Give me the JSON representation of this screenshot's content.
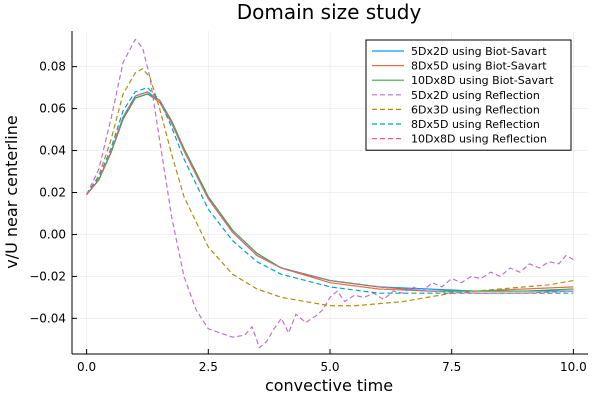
{
  "chart_data": {
    "type": "line",
    "title": "Domain size study",
    "xlabel": "convective time",
    "ylabel": "v/U near centerline",
    "xlim": [
      -0.3,
      10.3
    ],
    "ylim": [
      -0.057,
      0.097
    ],
    "x_ticks": [
      0.0,
      2.5,
      5.0,
      7.5,
      10.0
    ],
    "x_tick_labels": [
      "0.0",
      "2.5",
      "5.0",
      "7.5",
      "10.0"
    ],
    "y_ticks": [
      -0.04,
      -0.02,
      0.0,
      0.02,
      0.04,
      0.06,
      0.08
    ],
    "y_tick_labels": [
      "−0.04",
      "−0.02",
      "0.00",
      "0.02",
      "0.04",
      "0.06",
      "0.08"
    ],
    "grid": true,
    "legend_position": "top-right",
    "series": [
      {
        "name": "5Dx2D using Biot-Savart",
        "color": "#009af9",
        "dash": "solid",
        "x": [
          0.0,
          0.25,
          0.5,
          0.75,
          1.0,
          1.25,
          1.5,
          1.75,
          2.0,
          2.5,
          3.0,
          3.5,
          4.0,
          5.0,
          6.0,
          7.0,
          8.0,
          9.0,
          10.0
        ],
        "y": [
          0.019,
          0.026,
          0.039,
          0.056,
          0.066,
          0.068,
          0.064,
          0.053,
          0.04,
          0.017,
          0.001,
          -0.01,
          -0.016,
          -0.022,
          -0.025,
          -0.026,
          -0.027,
          -0.027,
          -0.027
        ]
      },
      {
        "name": "8Dx5D using Biot-Savart",
        "color": "#e26f46",
        "dash": "solid",
        "x": [
          0.0,
          0.25,
          0.5,
          0.75,
          1.0,
          1.25,
          1.5,
          1.75,
          2.0,
          2.5,
          3.0,
          3.5,
          4.0,
          5.0,
          6.0,
          7.0,
          8.0,
          9.0,
          10.0
        ],
        "y": [
          0.019,
          0.026,
          0.039,
          0.055,
          0.065,
          0.067,
          0.063,
          0.053,
          0.04,
          0.017,
          0.001,
          -0.01,
          -0.016,
          -0.023,
          -0.026,
          -0.027,
          -0.027,
          -0.026,
          -0.025
        ]
      },
      {
        "name": "10Dx8D using Biot-Savart",
        "color": "#3da44d",
        "dash": "solid",
        "x": [
          0.0,
          0.25,
          0.5,
          0.75,
          1.0,
          1.25,
          1.5,
          1.75,
          2.0,
          2.5,
          3.0,
          3.5,
          4.0,
          5.0,
          6.0,
          7.0,
          8.0,
          9.0,
          10.0
        ],
        "y": [
          0.019,
          0.026,
          0.039,
          0.055,
          0.065,
          0.067,
          0.064,
          0.054,
          0.041,
          0.018,
          0.002,
          -0.009,
          -0.016,
          -0.022,
          -0.025,
          -0.027,
          -0.027,
          -0.027,
          -0.026
        ]
      },
      {
        "name": "5Dx2D using Reflection",
        "color": "#c271d2",
        "dash": "dashed",
        "x": [
          0.0,
          0.25,
          0.5,
          0.75,
          1.0,
          1.15,
          1.3,
          1.5,
          1.75,
          2.0,
          2.25,
          2.5,
          2.75,
          3.0,
          3.25,
          3.4,
          3.55,
          3.7,
          3.85,
          4.0,
          4.15,
          4.3,
          4.5,
          4.7,
          4.85,
          5.0,
          5.15,
          5.3,
          5.5,
          5.7,
          5.9,
          6.1,
          6.3,
          6.5,
          6.7,
          6.9,
          7.1,
          7.3,
          7.5,
          7.7,
          7.9,
          8.1,
          8.3,
          8.5,
          8.7,
          8.9,
          9.1,
          9.3,
          9.5,
          9.7,
          9.85,
          10.0
        ],
        "y": [
          0.019,
          0.031,
          0.055,
          0.082,
          0.093,
          0.089,
          0.075,
          0.045,
          0.008,
          -0.02,
          -0.036,
          -0.045,
          -0.047,
          -0.049,
          -0.048,
          -0.044,
          -0.054,
          -0.051,
          -0.045,
          -0.04,
          -0.047,
          -0.038,
          -0.042,
          -0.039,
          -0.036,
          -0.03,
          -0.027,
          -0.032,
          -0.029,
          -0.03,
          -0.028,
          -0.031,
          -0.027,
          -0.028,
          -0.025,
          -0.027,
          -0.023,
          -0.025,
          -0.021,
          -0.023,
          -0.02,
          -0.021,
          -0.018,
          -0.02,
          -0.016,
          -0.018,
          -0.014,
          -0.016,
          -0.013,
          -0.014,
          -0.01,
          -0.012
        ]
      },
      {
        "name": "6Dx3D using Reflection",
        "color": "#ac8e18",
        "dash": "dashed",
        "x": [
          0.0,
          0.25,
          0.5,
          0.75,
          1.0,
          1.15,
          1.3,
          1.5,
          1.75,
          2.0,
          2.5,
          3.0,
          3.5,
          4.0,
          4.5,
          5.0,
          5.5,
          6.0,
          6.5,
          7.0,
          7.5,
          8.0,
          8.5,
          9.0,
          9.5,
          10.0
        ],
        "y": [
          0.019,
          0.028,
          0.045,
          0.067,
          0.077,
          0.079,
          0.075,
          0.06,
          0.038,
          0.018,
          -0.006,
          -0.019,
          -0.026,
          -0.03,
          -0.032,
          -0.034,
          -0.034,
          -0.033,
          -0.032,
          -0.03,
          -0.028,
          -0.027,
          -0.026,
          -0.025,
          -0.024,
          -0.022
        ]
      },
      {
        "name": "8Dx5D using Reflection",
        "color": "#00a9ad",
        "dash": "dashed",
        "x": [
          0.0,
          0.25,
          0.5,
          0.75,
          1.0,
          1.25,
          1.5,
          1.75,
          2.0,
          2.5,
          3.0,
          3.5,
          4.0,
          5.0,
          6.0,
          7.0,
          8.0,
          9.0,
          10.0
        ],
        "y": [
          0.019,
          0.027,
          0.041,
          0.059,
          0.068,
          0.07,
          0.064,
          0.051,
          0.036,
          0.012,
          -0.003,
          -0.013,
          -0.019,
          -0.025,
          -0.028,
          -0.028,
          -0.028,
          -0.028,
          -0.028
        ]
      },
      {
        "name": "10Dx8D using Reflection",
        "color": "#ed5d92",
        "dash": "dashed",
        "x": [
          0.0,
          0.25,
          0.5,
          0.75,
          1.0,
          1.25,
          1.5,
          1.75,
          2.0,
          2.5,
          3.0,
          3.5,
          4.0,
          5.0,
          6.0,
          7.0,
          8.0,
          9.0,
          10.0
        ],
        "y": [
          0.019,
          0.026,
          0.04,
          0.056,
          0.066,
          0.068,
          0.064,
          0.053,
          0.04,
          0.017,
          0.001,
          -0.01,
          -0.016,
          -0.022,
          -0.025,
          -0.027,
          -0.028,
          -0.028,
          -0.027
        ]
      }
    ]
  }
}
